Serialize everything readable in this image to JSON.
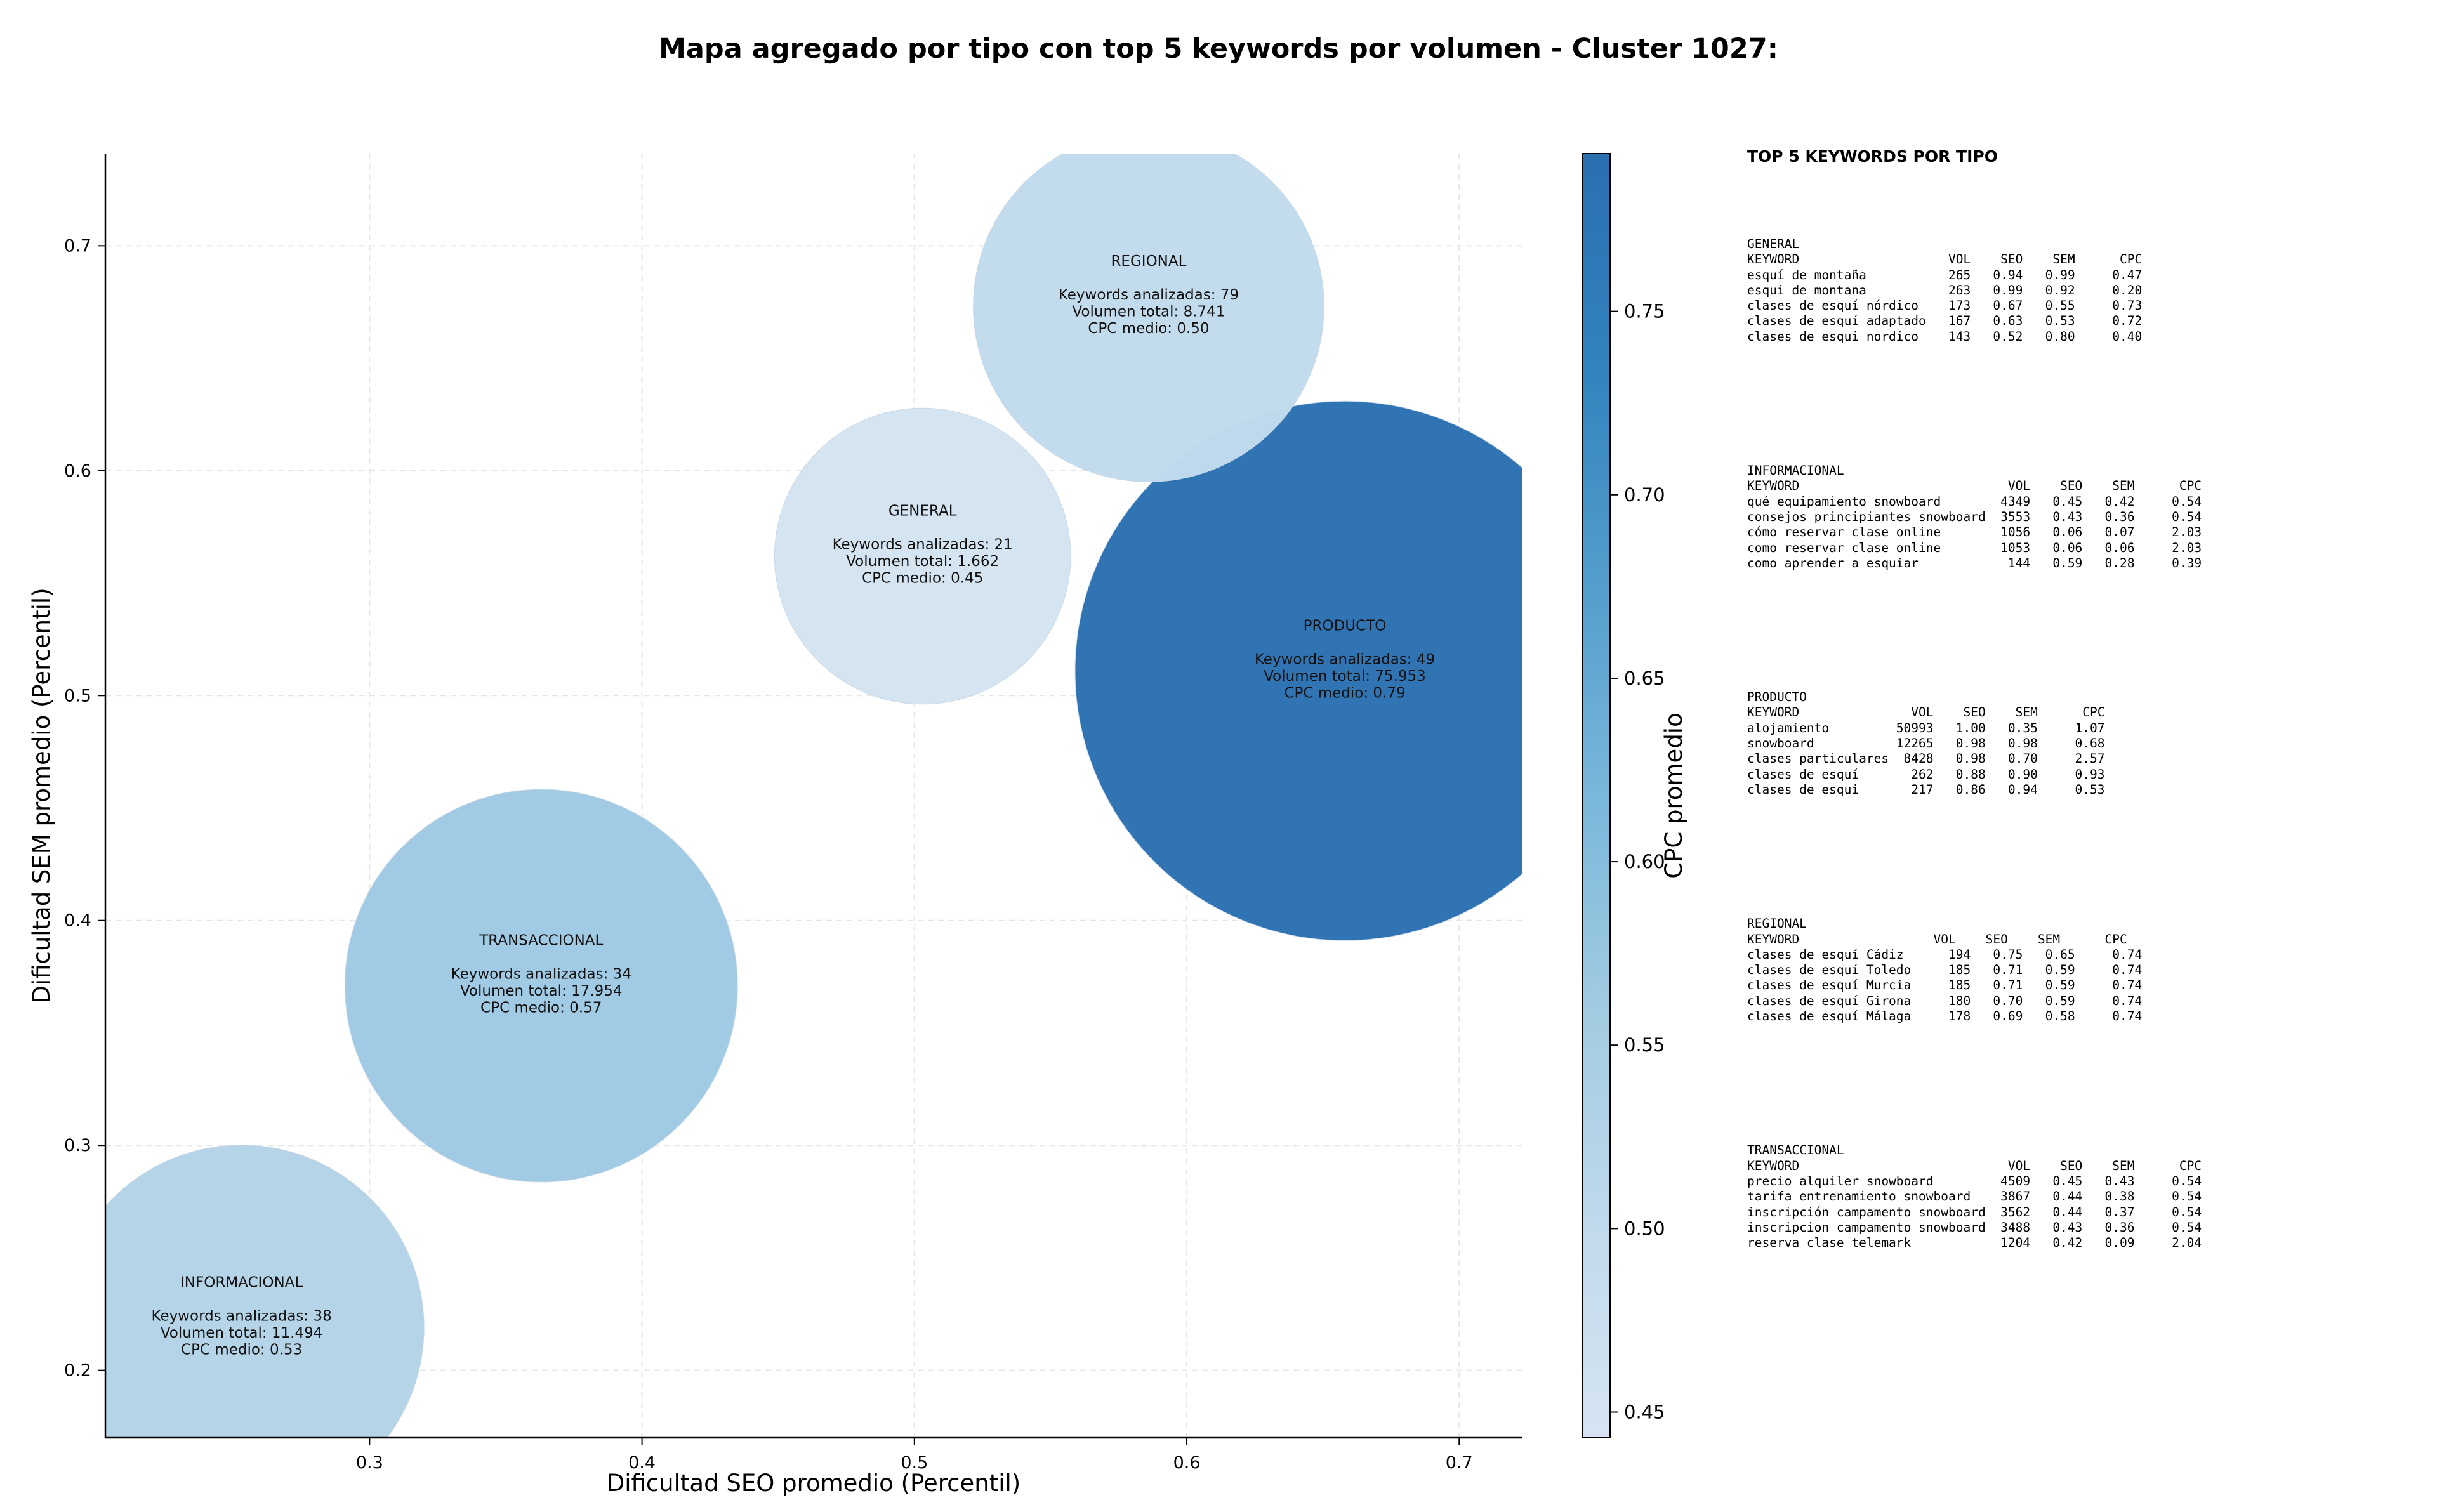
{
  "page_title": "Mapa agregado por tipo con top 5 keywords por volumen - Cluster 1027:",
  "chart_data": {
    "type": "scatter",
    "title": "Mapa agregado por tipo con top 5 keywords por volumen - Cluster 1027:",
    "xlabel": "Dificultad SEO promedio (Percentil)",
    "ylabel": "Dificultad SEM promedio (Percentil)",
    "xlim": [
      0.203,
      0.723
    ],
    "ylim": [
      0.17,
      0.741
    ],
    "xticks": [
      "0.3",
      "0.4",
      "0.5",
      "0.6",
      "0.7"
    ],
    "yticks": [
      "0.2",
      "0.3",
      "0.4",
      "0.5",
      "0.6",
      "0.7"
    ],
    "xtick_values": [
      0.3,
      0.4,
      0.5,
      0.6,
      0.7
    ],
    "ytick_values": [
      0.2,
      0.3,
      0.4,
      0.5,
      0.6,
      0.7
    ],
    "grid": true,
    "colorbar": {
      "label": "CPC promedio",
      "min": 0.443,
      "max": 0.793,
      "ticks": [
        "0.45",
        "0.50",
        "0.55",
        "0.60",
        "0.65",
        "0.70",
        "0.75"
      ],
      "tick_values": [
        0.45,
        0.5,
        0.55,
        0.6,
        0.65,
        0.7,
        0.75
      ],
      "colors": [
        "#d6e4f2",
        "#c0d9ec",
        "#a1cbe2",
        "#7ab7da",
        "#529dcc",
        "#3283be",
        "#2a6fb0"
      ]
    },
    "points": [
      {
        "name": "GENERAL",
        "x": 0.503,
        "y": 0.562,
        "keywords_analizadas": 21,
        "volumen_total": 1662,
        "cpc": 0.45,
        "color": "#d4e3f1",
        "label_lines": [
          "GENERAL",
          "",
          "Keywords analizadas: 21",
          "Volumen total: 1.662",
          "CPC medio: 0.45"
        ]
      },
      {
        "name": "INFORMACIONAL",
        "x": 0.253,
        "y": 0.219,
        "keywords_analizadas": 38,
        "volumen_total": 11494,
        "cpc": 0.53,
        "color": "#b4d3e8",
        "label_lines": [
          "INFORMACIONAL",
          "",
          "Keywords analizadas: 38",
          "Volumen total: 11.494",
          "CPC medio: 0.53"
        ]
      },
      {
        "name": "PRODUCTO",
        "x": 0.658,
        "y": 0.511,
        "keywords_analizadas": 49,
        "volumen_total": 75953,
        "cpc": 0.79,
        "color": "#2d71b2",
        "label_lines": [
          "PRODUCTO",
          "",
          "Keywords analizadas: 49",
          "Volumen total: 75.953",
          "CPC medio: 0.79"
        ]
      },
      {
        "name": "REGIONAL",
        "x": 0.586,
        "y": 0.673,
        "keywords_analizadas": 79,
        "volumen_total": 8741,
        "cpc": 0.5,
        "color": "#c1dbed",
        "label_lines": [
          "REGIONAL",
          "",
          "Keywords analizadas: 79",
          "Volumen total: 8.741",
          "CPC medio: 0.50"
        ]
      },
      {
        "name": "TRANSACCIONAL",
        "x": 0.363,
        "y": 0.371,
        "keywords_analizadas": 34,
        "volumen_total": 17954,
        "cpc": 0.57,
        "color": "#9fc9e3",
        "label_lines": [
          "TRANSACCIONAL",
          "",
          "Keywords analizadas: 34",
          "Volumen total: 17.954",
          "CPC medio: 0.57"
        ]
      }
    ]
  },
  "keywords_table": {
    "heading": "TOP 5 KEYWORDS POR TIPO",
    "blocks": [
      {
        "type": "GENERAL",
        "text": "GENERAL\nKEYWORD                    VOL    SEO    SEM      CPC\nesquí de montaña           265   0.94   0.99     0.47\nesqui de montana           263   0.99   0.92     0.20\nclases de esquí nórdico    173   0.67   0.55     0.73\nclases de esquí adaptado   167   0.63   0.53     0.72\nclases de esqui nordico    143   0.52   0.80     0.40"
      },
      {
        "type": "INFORMACIONAL",
        "text": "INFORMACIONAL\nKEYWORD                            VOL    SEO    SEM      CPC\nqué equipamiento snowboard        4349   0.45   0.42     0.54\nconsejos principiantes snowboard  3553   0.43   0.36     0.54\ncómo reservar clase online        1056   0.06   0.07     2.03\ncomo reservar clase online        1053   0.06   0.06     2.03\ncomo aprender a esquiar            144   0.59   0.28     0.39"
      },
      {
        "type": "PRODUCTO",
        "text": "PRODUCTO\nKEYWORD               VOL    SEO    SEM      CPC\nalojamiento         50993   1.00   0.35     1.07\nsnowboard           12265   0.98   0.98     0.68\nclases particulares  8428   0.98   0.70     2.57\nclases de esquí       262   0.88   0.90     0.93\nclases de esqui       217   0.86   0.94     0.53"
      },
      {
        "type": "REGIONAL",
        "text": "REGIONAL\nKEYWORD                  VOL    SEO    SEM      CPC\nclases de esquí Cádiz      194   0.75   0.65     0.74\nclases de esquí Toledo     185   0.71   0.59     0.74\nclases de esquí Murcia     185   0.71   0.59     0.74\nclases de esquí Girona     180   0.70   0.59     0.74\nclases de esquí Málaga     178   0.69   0.58     0.74"
      },
      {
        "type": "TRANSACCIONAL",
        "text": "TRANSACCIONAL\nKEYWORD                            VOL    SEO    SEM      CPC\nprecio alquiler snowboard         4509   0.45   0.43     0.54\ntarifa entrenamiento snowboard    3867   0.44   0.38     0.54\ninscripción campamento snowboard  3562   0.44   0.37     0.54\ninscripcion campamento snowboard  3488   0.43   0.36     0.54\nreserva clase telemark            1204   0.42   0.09     2.04"
      }
    ]
  }
}
